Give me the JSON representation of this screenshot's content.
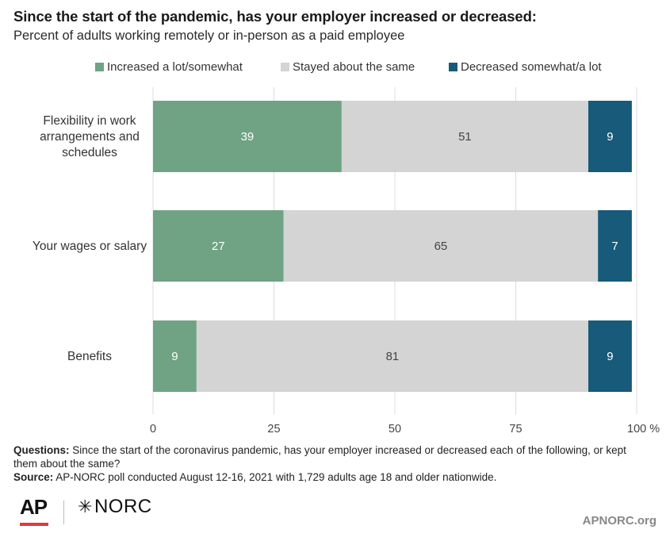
{
  "title": "Since the start of the pandemic, has your employer increased or decreased:",
  "subtitle": "Percent of adults working remotely or in-person as a paid employee",
  "legend": [
    {
      "label": "Increased a lot/somewhat",
      "color": "#6fa384"
    },
    {
      "label": "Stayed about the same",
      "color": "#d4d4d4"
    },
    {
      "label": "Decreased somewhat/a lot",
      "color": "#175a7a"
    }
  ],
  "chart_data": {
    "type": "bar",
    "orientation": "horizontal",
    "stacked": true,
    "categories": [
      [
        "Flexibility in work",
        "arrangements and",
        "schedules"
      ],
      [
        "Your wages or salary"
      ],
      [
        "Benefits"
      ]
    ],
    "series": [
      {
        "name": "Increased a lot/somewhat",
        "values": [
          39,
          27,
          9
        ],
        "color": "#6fa384",
        "label_color": "#ffffff"
      },
      {
        "name": "Stayed about the same",
        "values": [
          51,
          65,
          81
        ],
        "color": "#d4d4d4",
        "label_color": "#444444"
      },
      {
        "name": "Decreased somewhat/a lot",
        "values": [
          9,
          7,
          9
        ],
        "color": "#175a7a",
        "label_color": "#ffffff"
      }
    ],
    "xlim": [
      0,
      100
    ],
    "xticks": [
      "0",
      "25",
      "50",
      "75",
      "100 %"
    ],
    "xtick_values": [
      0,
      25,
      50,
      75,
      100
    ],
    "grid": true,
    "legend_position": "top-right"
  },
  "notes": {
    "questions_label": "Questions:",
    "questions_text": " Since the start of the coronavirus pandemic, has your employer increased or decreased each of the following, or kept them about the same?",
    "source_label": "Source:",
    "source_text": " AP-NORC poll conducted August 12-16, 2021 with 1,729 adults age 18 and older nationwide."
  },
  "logos": {
    "ap": "AP",
    "norc": "NORC",
    "norc_mark": "✳"
  },
  "site": "APNORC.org"
}
